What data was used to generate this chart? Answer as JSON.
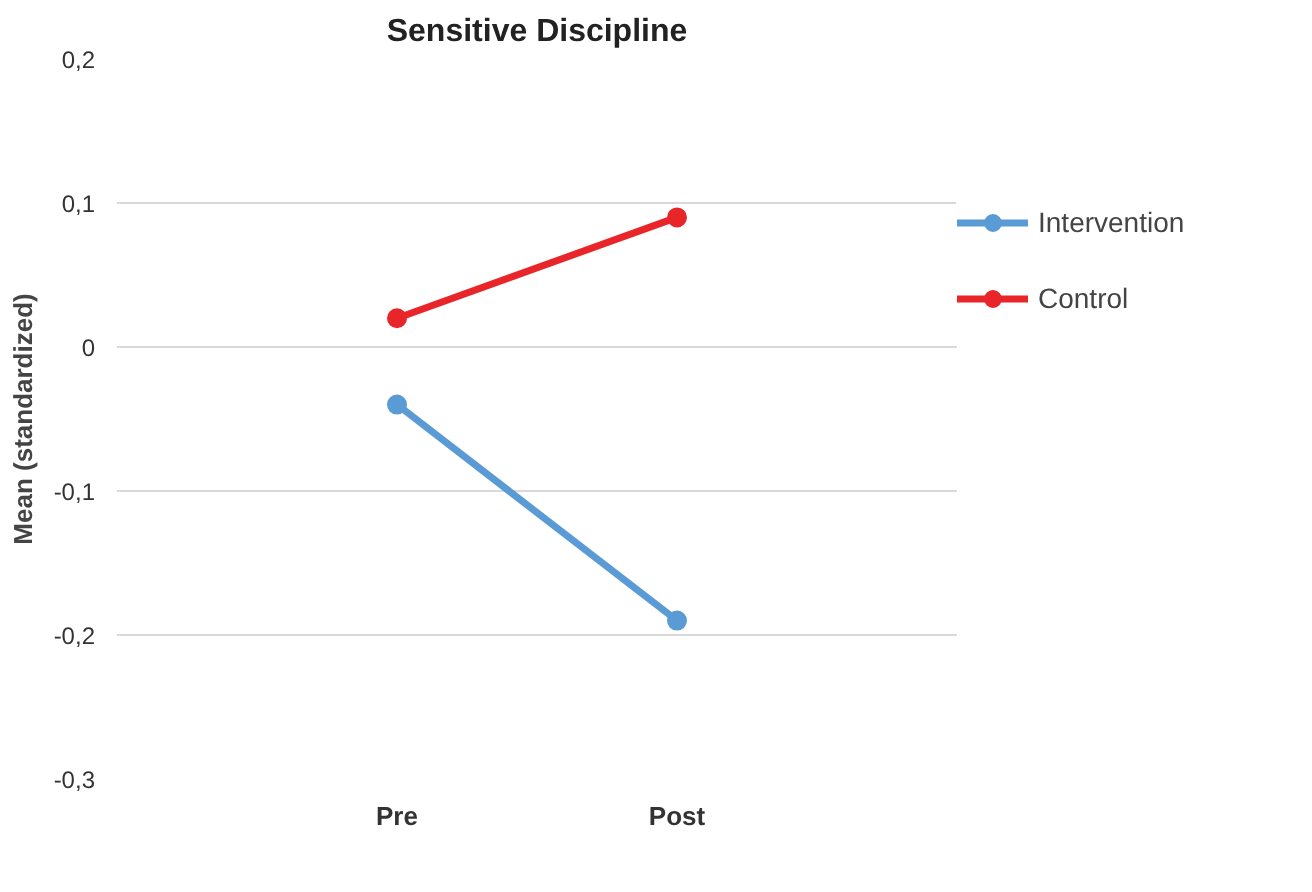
{
  "chart_data": {
    "type": "line",
    "title": "Sensitive Discipline",
    "ylabel": "Mean (standardized)",
    "categories": [
      "Pre",
      "Post"
    ],
    "series": [
      {
        "name": "Intervention",
        "color": "#5b9bd5",
        "values": [
          -0.04,
          -0.19
        ]
      },
      {
        "name": "Control",
        "color": "#e8262a",
        "values": [
          0.02,
          0.09
        ]
      }
    ],
    "ylim": [
      -0.3,
      0.2
    ],
    "yticks": [
      {
        "value": -0.3,
        "label": "-0,3"
      },
      {
        "value": -0.2,
        "label": "-0,2"
      },
      {
        "value": -0.1,
        "label": "-0,1"
      },
      0,
      {
        "value": 0.1,
        "label": "0,1"
      },
      {
        "value": 0.2,
        "label": "0,2"
      }
    ],
    "grid": "y",
    "legend": "right",
    "marker": "circle",
    "line_style": "solid"
  }
}
